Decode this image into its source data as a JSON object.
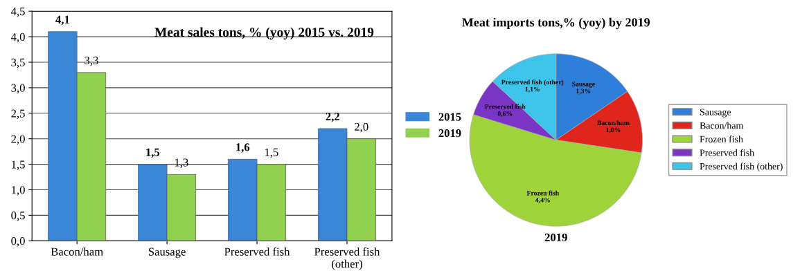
{
  "chart_data": [
    {
      "type": "bar",
      "title": "Meat sales tons, % (yoy) 2015 vs. 2019",
      "categories": [
        "Bacon/ham",
        "Sausage",
        "Preserved fish",
        "Preserved fish\n(other)"
      ],
      "series": [
        {
          "name": "2015",
          "color": "#3a87d8",
          "values": [
            4.1,
            1.5,
            1.6,
            2.2
          ],
          "value_labels": [
            "4,1",
            "1,5",
            "1,6",
            "2,2"
          ]
        },
        {
          "name": "2019",
          "color": "#92d050",
          "values": [
            3.3,
            1.3,
            1.5,
            2.0
          ],
          "value_labels": [
            "3,3",
            "1,3",
            "1,5",
            "2,0"
          ]
        }
      ],
      "ylim": [
        0,
        4.5
      ],
      "yticks": [
        {
          "value": 0,
          "label": "0,0"
        },
        {
          "value": 0.5,
          "label": "0,5"
        },
        {
          "value": 1,
          "label": "1,0"
        },
        {
          "value": 1.5,
          "label": "1,5"
        },
        {
          "value": 2,
          "label": "2,0"
        },
        {
          "value": 2.5,
          "label": "2,5"
        },
        {
          "value": 3,
          "label": "3,0"
        },
        {
          "value": 3.5,
          "label": "3,5"
        },
        {
          "value": 4,
          "label": "4,0"
        },
        {
          "value": 4.5,
          "label": "4,5"
        }
      ],
      "grid": "y",
      "legend": "right"
    },
    {
      "type": "pie",
      "title": "Meat imports tons,% (yoy) by 2019",
      "xlabel": "2019",
      "categories": [
        "Sausage",
        "Bacon/ham",
        "Frozen fish",
        "Preserved fish",
        "Preserved fish (other)"
      ],
      "values": [
        1.3,
        1.0,
        4.4,
        0.6,
        1.1
      ],
      "value_labels": [
        "1,3%",
        "1,0%",
        "4,4%",
        "0,6%",
        "1,1%"
      ],
      "colors": [
        "#2e7fd9",
        "#e0251d",
        "#9fd33a",
        "#7b35c4",
        "#3ec4ea"
      ],
      "legend": "right"
    }
  ]
}
